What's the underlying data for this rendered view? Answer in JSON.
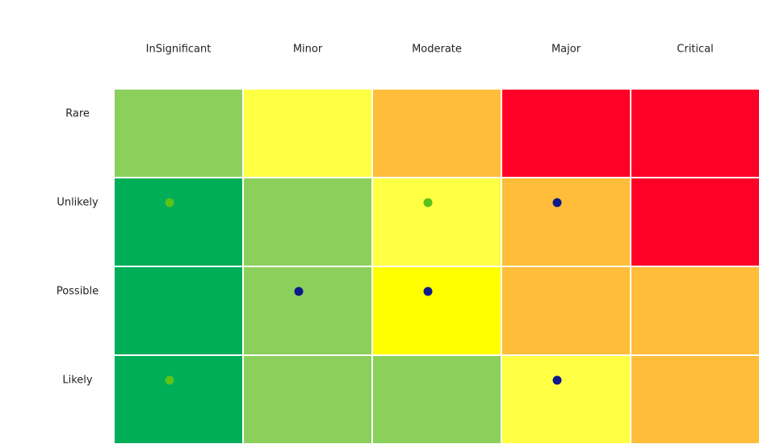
{
  "chart_data": {
    "type": "heatmap",
    "title": "",
    "xlabel": "",
    "ylabel": "",
    "columns": [
      "InSignificant",
      "Minor",
      "Moderate",
      "Major",
      "Critical"
    ],
    "rows": [
      "Rare",
      "Unlikely",
      "Possible",
      "Likely"
    ],
    "cell_colors": [
      [
        "#8cd05c",
        "#ffff44",
        "#ffbd3a",
        "#ff0026",
        "#ff0026"
      ],
      [
        "#00ae58",
        "#8cd05c",
        "#ffff44",
        "#ffbd3a",
        "#ff0026"
      ],
      [
        "#00ae58",
        "#8cd05c",
        "#ffff00",
        "#ffbd3a",
        "#ffbd3a"
      ],
      [
        "#00ae58",
        "#8cd05c",
        "#8cd05c",
        "#ffff44",
        "#ffbd3a"
      ]
    ],
    "markers": [
      {
        "row": "Unlikely",
        "column": "InSignificant",
        "color": "#5cc21a"
      },
      {
        "row": "Unlikely",
        "column": "Moderate",
        "color": "#5cc21a"
      },
      {
        "row": "Unlikely",
        "column": "Major",
        "color": "#0d1a8c"
      },
      {
        "row": "Possible",
        "column": "Minor",
        "color": "#0d1a8c"
      },
      {
        "row": "Possible",
        "column": "Moderate",
        "color": "#0d1a8c"
      },
      {
        "row": "Likely",
        "column": "InSignificant",
        "color": "#5cc21a"
      },
      {
        "row": "Likely",
        "column": "Major",
        "color": "#0d1a8c"
      }
    ],
    "grid": true,
    "legend": "none"
  }
}
